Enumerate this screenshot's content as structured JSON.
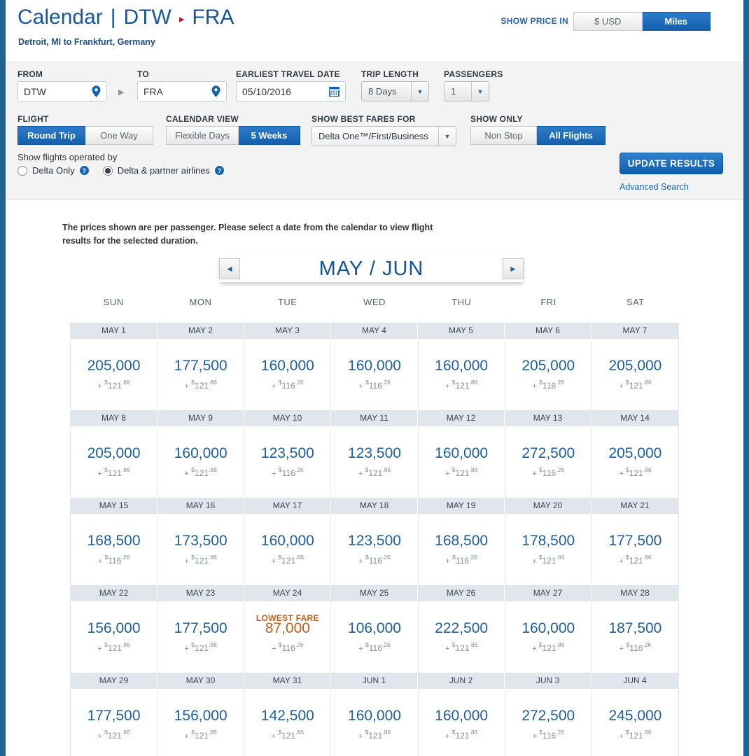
{
  "header": {
    "title_prefix": "Calendar",
    "separator": "|",
    "origin_code": "DTW",
    "dest_code": "FRA",
    "subtitle": "Detroit, MI to Frankfurt, Germany",
    "show_price_in": {
      "label": "SHOW PRICE IN",
      "options": [
        "$ USD",
        "Miles"
      ],
      "selected": "Miles"
    }
  },
  "search_form": {
    "from": {
      "label": "FROM",
      "value": "DTW"
    },
    "to": {
      "label": "TO",
      "value": "FRA"
    },
    "earliest_travel_date": {
      "label": "EARLIEST TRAVEL DATE",
      "value": "05/10/2016"
    },
    "trip_length": {
      "label": "TRIP LENGTH",
      "value": "8 Days"
    },
    "passengers": {
      "label": "PASSENGERS",
      "value": "1"
    },
    "flight": {
      "label": "FLIGHT",
      "options": [
        "Round Trip",
        "One Way"
      ],
      "selected": "Round Trip"
    },
    "calendar_view": {
      "label": "CALENDAR VIEW",
      "options": [
        "Flexible Days",
        "5 Weeks"
      ],
      "selected": "5 Weeks"
    },
    "show_best_fares_for": {
      "label": "SHOW BEST FARES FOR",
      "value": "Delta One™/First/Business"
    },
    "show_only": {
      "label": "SHOW ONLY",
      "options": [
        "Non Stop",
        "All Flights"
      ],
      "selected": "All Flights"
    },
    "operated_by": {
      "label": "Show flights operated by",
      "options": [
        {
          "label": "Delta Only",
          "selected": false
        },
        {
          "label": "Delta & partner airlines",
          "selected": true
        }
      ]
    },
    "update_button": "UPDATE RESULTS",
    "advanced_search": "Advanced Search"
  },
  "notice": "The prices shown are per passenger. Please select a date from the calendar to view flight results for the selected duration.",
  "icons": {
    "prev": "◄",
    "next": "►",
    "dropdown_caret": "▼",
    "route_arrow": "▶",
    "title_arrow": "▸",
    "help": "?"
  },
  "colors": {
    "brand_blue": "#17569c",
    "button_blue": "#1467bd",
    "lowest_fare_orange": "#c0601c",
    "date_strip_bg": "#e0e6eb",
    "tax_gray": "#868d95",
    "side_stripe_blue": "#21648f"
  },
  "calendar": {
    "month_header": "MAY / JUN",
    "day_headers": [
      "SUN",
      "MON",
      "TUE",
      "WED",
      "THU",
      "FRI",
      "SAT"
    ],
    "lowest_fare_label": "LOWEST FARE",
    "tax_prefix": "+",
    "currency": "$",
    "weeks": [
      {
        "days": [
          {
            "date": "MAY 1",
            "miles": "205,000",
            "tax_dollars": "121",
            "tax_cents": "86",
            "lowest_fare": false
          },
          {
            "date": "MAY 2",
            "miles": "177,500",
            "tax_dollars": "121",
            "tax_cents": "86",
            "lowest_fare": false
          },
          {
            "date": "MAY 3",
            "miles": "160,000",
            "tax_dollars": "116",
            "tax_cents": "26",
            "lowest_fare": false
          },
          {
            "date": "MAY 4",
            "miles": "160,000",
            "tax_dollars": "116",
            "tax_cents": "26",
            "lowest_fare": false
          },
          {
            "date": "MAY 5",
            "miles": "160,000",
            "tax_dollars": "121",
            "tax_cents": "86",
            "lowest_fare": false
          },
          {
            "date": "MAY 6",
            "miles": "205,000",
            "tax_dollars": "116",
            "tax_cents": "26",
            "lowest_fare": false
          },
          {
            "date": "MAY 7",
            "miles": "205,000",
            "tax_dollars": "121",
            "tax_cents": "86",
            "lowest_fare": false
          }
        ]
      },
      {
        "days": [
          {
            "date": "MAY 8",
            "miles": "205,000",
            "tax_dollars": "121",
            "tax_cents": "86",
            "lowest_fare": false
          },
          {
            "date": "MAY 9",
            "miles": "160,000",
            "tax_dollars": "121",
            "tax_cents": "86",
            "lowest_fare": false
          },
          {
            "date": "MAY 10",
            "miles": "123,500",
            "tax_dollars": "116",
            "tax_cents": "26",
            "lowest_fare": false
          },
          {
            "date": "MAY 11",
            "miles": "123,500",
            "tax_dollars": "121",
            "tax_cents": "86",
            "lowest_fare": false
          },
          {
            "date": "MAY 12",
            "miles": "160,000",
            "tax_dollars": "121",
            "tax_cents": "86",
            "lowest_fare": false
          },
          {
            "date": "MAY 13",
            "miles": "272,500",
            "tax_dollars": "116",
            "tax_cents": "26",
            "lowest_fare": false
          },
          {
            "date": "MAY 14",
            "miles": "205,000",
            "tax_dollars": "121",
            "tax_cents": "86",
            "lowest_fare": false
          }
        ]
      },
      {
        "days": [
          {
            "date": "MAY 15",
            "miles": "168,500",
            "tax_dollars": "116",
            "tax_cents": "26",
            "lowest_fare": false
          },
          {
            "date": "MAY 16",
            "miles": "173,500",
            "tax_dollars": "121",
            "tax_cents": "86",
            "lowest_fare": false
          },
          {
            "date": "MAY 17",
            "miles": "160,000",
            "tax_dollars": "121",
            "tax_cents": "86",
            "lowest_fare": false
          },
          {
            "date": "MAY 18",
            "miles": "123,500",
            "tax_dollars": "116",
            "tax_cents": "26",
            "lowest_fare": false
          },
          {
            "date": "MAY 19",
            "miles": "168,500",
            "tax_dollars": "116",
            "tax_cents": "26",
            "lowest_fare": false
          },
          {
            "date": "MAY 20",
            "miles": "178,500",
            "tax_dollars": "121",
            "tax_cents": "86",
            "lowest_fare": false
          },
          {
            "date": "MAY 21",
            "miles": "177,500",
            "tax_dollars": "121",
            "tax_cents": "86",
            "lowest_fare": false
          }
        ]
      },
      {
        "days": [
          {
            "date": "MAY 22",
            "miles": "156,000",
            "tax_dollars": "121",
            "tax_cents": "86",
            "lowest_fare": false
          },
          {
            "date": "MAY 23",
            "miles": "177,500",
            "tax_dollars": "121",
            "tax_cents": "86",
            "lowest_fare": false
          },
          {
            "date": "MAY 24",
            "miles": "87,000",
            "tax_dollars": "116",
            "tax_cents": "26",
            "lowest_fare": true
          },
          {
            "date": "MAY 25",
            "miles": "106,000",
            "tax_dollars": "116",
            "tax_cents": "26",
            "lowest_fare": false
          },
          {
            "date": "MAY 26",
            "miles": "222,500",
            "tax_dollars": "121",
            "tax_cents": "86",
            "lowest_fare": false
          },
          {
            "date": "MAY 27",
            "miles": "160,000",
            "tax_dollars": "121",
            "tax_cents": "86",
            "lowest_fare": false
          },
          {
            "date": "MAY 28",
            "miles": "187,500",
            "tax_dollars": "116",
            "tax_cents": "26",
            "lowest_fare": false
          }
        ]
      },
      {
        "days": [
          {
            "date": "MAY 29",
            "miles": "177,500",
            "tax_dollars": "121",
            "tax_cents": "86",
            "lowest_fare": false
          },
          {
            "date": "MAY 30",
            "miles": "156,000",
            "tax_dollars": "121",
            "tax_cents": "86",
            "lowest_fare": false
          },
          {
            "date": "MAY 31",
            "miles": "142,500",
            "tax_dollars": "121",
            "tax_cents": "86",
            "lowest_fare": false
          },
          {
            "date": "JUN 1",
            "miles": "160,000",
            "tax_dollars": "121",
            "tax_cents": "86",
            "lowest_fare": false
          },
          {
            "date": "JUN 2",
            "miles": "160,000",
            "tax_dollars": "121",
            "tax_cents": "86",
            "lowest_fare": false
          },
          {
            "date": "JUN 3",
            "miles": "272,500",
            "tax_dollars": "116",
            "tax_cents": "26",
            "lowest_fare": false
          },
          {
            "date": "JUN 4",
            "miles": "245,000",
            "tax_dollars": "121",
            "tax_cents": "86",
            "lowest_fare": false
          }
        ]
      }
    ]
  }
}
